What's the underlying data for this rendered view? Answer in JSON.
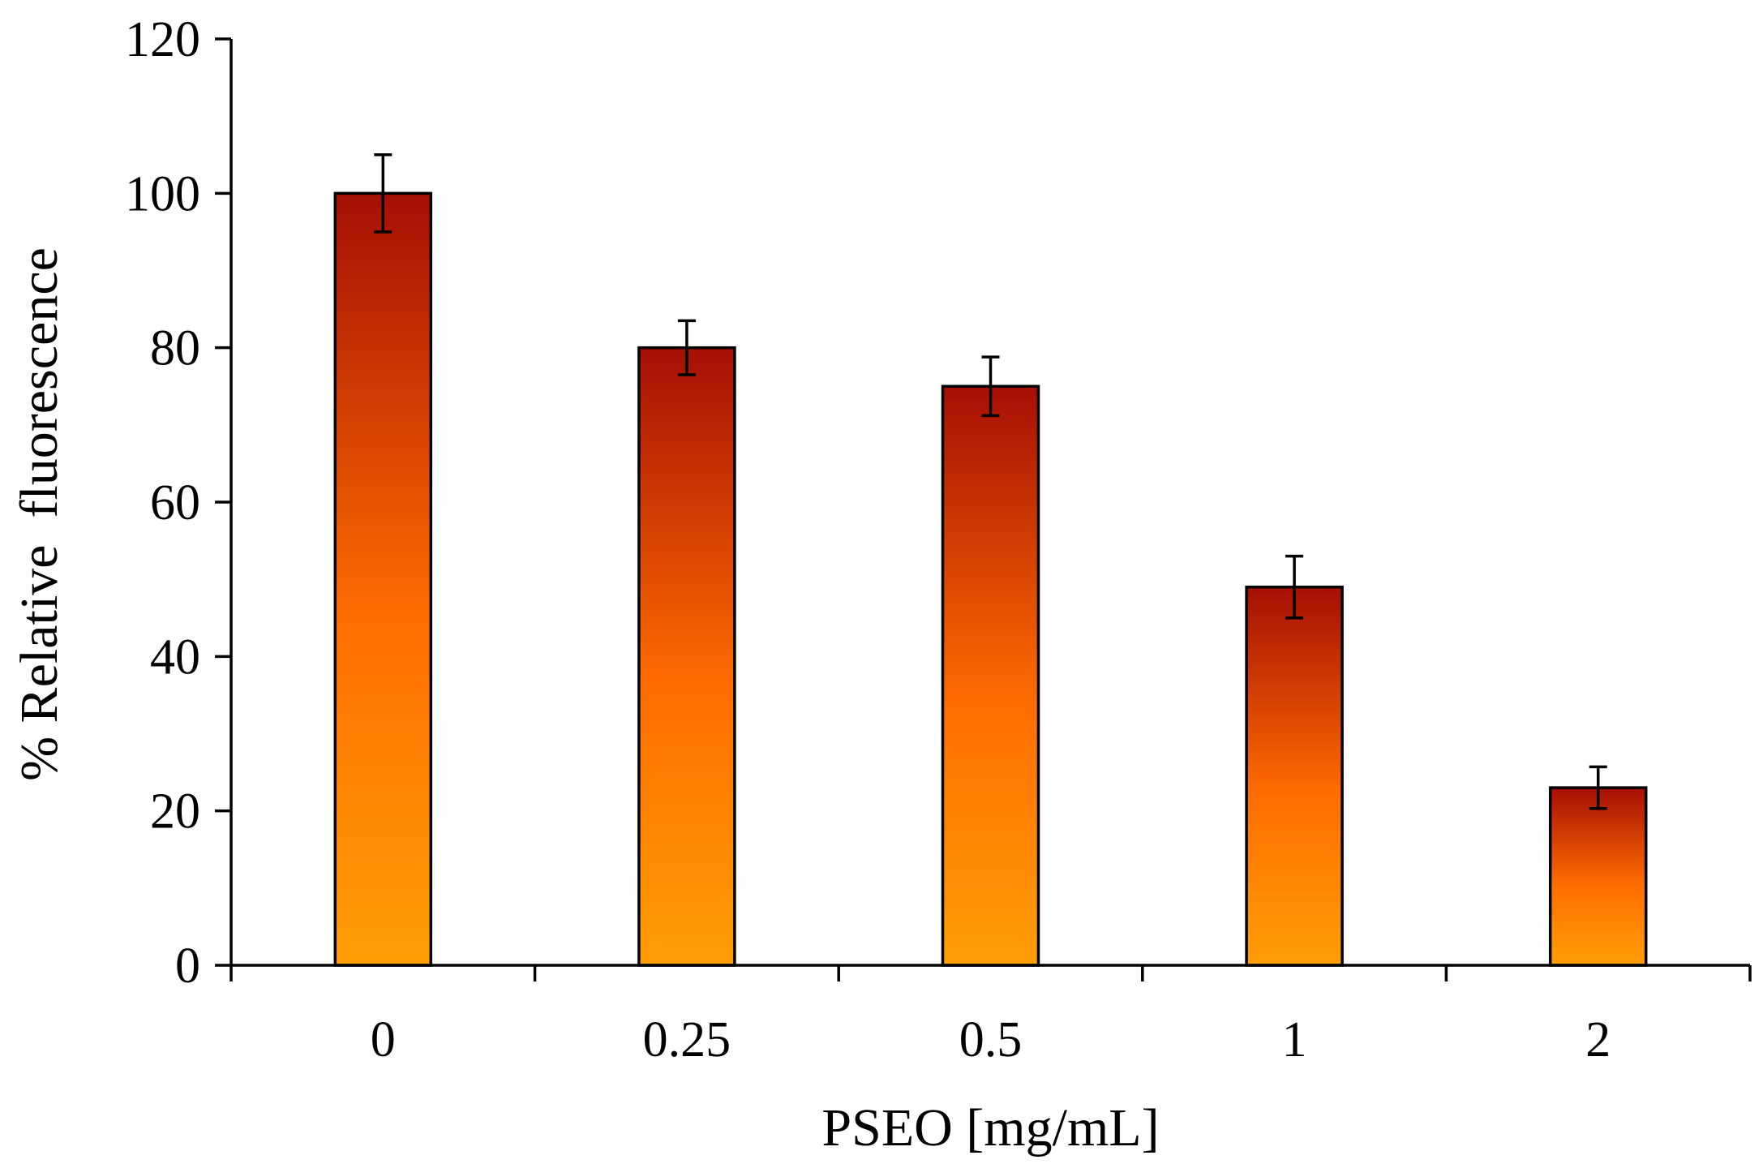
{
  "chart_data": {
    "type": "bar",
    "title": "",
    "xlabel": "PSEO [mg/mL]",
    "ylabel": "% Relative  fluorescence",
    "categories": [
      "0",
      "0.25",
      "0.5",
      "1",
      "2"
    ],
    "values": [
      100,
      80,
      75,
      49,
      23
    ],
    "errors": [
      5,
      3.5,
      3.8,
      4,
      2.7
    ],
    "ylim": [
      0,
      120
    ],
    "yticks": [
      "0",
      "20",
      "40",
      "60",
      "80",
      "100",
      "120"
    ],
    "grid": false,
    "colors": {
      "top": "#a50f05",
      "mid": "#ff6d00",
      "bottom": "#ff9e05",
      "stroke": "#000000"
    }
  }
}
